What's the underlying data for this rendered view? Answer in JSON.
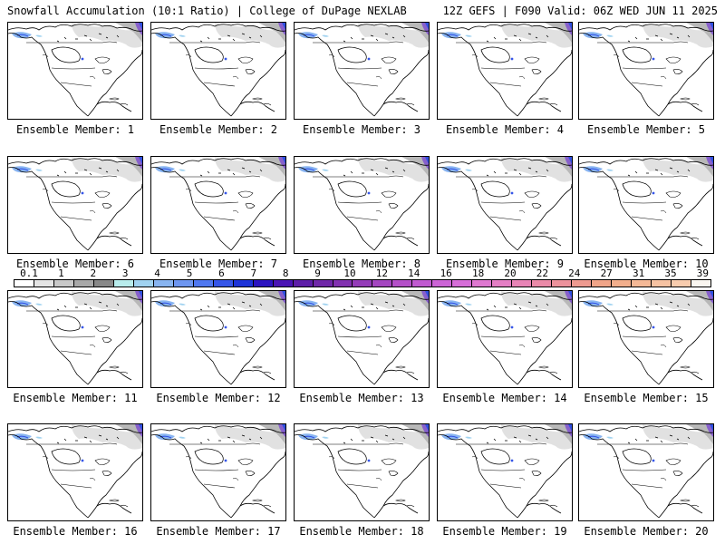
{
  "header": {
    "left": "Snowfall Accumulation (10:1 Ratio) | College of DuPage NEXLAB",
    "right": "12Z GEFS | F090 Valid: 06Z WED JUN 11 2025"
  },
  "panels": [
    {
      "caption": "Ensemble Member: 1"
    },
    {
      "caption": "Ensemble Member: 2"
    },
    {
      "caption": "Ensemble Member: 3"
    },
    {
      "caption": "Ensemble Member: 4"
    },
    {
      "caption": "Ensemble Member: 5"
    },
    {
      "caption": "Ensemble Member: 6"
    },
    {
      "caption": "Ensemble Member: 7"
    },
    {
      "caption": "Ensemble Member: 8"
    },
    {
      "caption": "Ensemble Member: 9"
    },
    {
      "caption": "Ensemble Member: 10"
    },
    {
      "caption": "Ensemble Member: 11"
    },
    {
      "caption": "Ensemble Member: 12"
    },
    {
      "caption": "Ensemble Member: 13"
    },
    {
      "caption": "Ensemble Member: 14"
    },
    {
      "caption": "Ensemble Member: 15"
    },
    {
      "caption": "Ensemble Member: 16"
    },
    {
      "caption": "Ensemble Member: 17"
    },
    {
      "caption": "Ensemble Member: 18"
    },
    {
      "caption": "Ensemble Member: 19"
    },
    {
      "caption": "Ensemble Member: 20"
    }
  ],
  "colorbar": {
    "labels": [
      "0.1",
      "1",
      "2",
      "3",
      "4",
      "5",
      "6",
      "7",
      "8",
      "9",
      "10",
      "12",
      "14",
      "16",
      "18",
      "20",
      "22",
      "24",
      "27",
      "31",
      "35",
      "39"
    ],
    "colors": [
      "#ffffff",
      "#e4e4e4",
      "#c8c8c8",
      "#a8a8a8",
      "#888888",
      "#b8ecec",
      "#a0d2f0",
      "#88b4f0",
      "#6e96f0",
      "#5078f0",
      "#3656e8",
      "#1e34d8",
      "#2c14c0",
      "#4a14b4",
      "#5e1ea8",
      "#7028a8",
      "#8232b0",
      "#943cb8",
      "#a446c0",
      "#b450c8",
      "#c05ad0",
      "#cc64d6",
      "#d66ed8",
      "#de78d0",
      "#e47ec4",
      "#e884b6",
      "#ea8aa8",
      "#ec929c",
      "#ee9a90",
      "#f0a488",
      "#f2ae8c",
      "#f4b896",
      "#f6c2a2",
      "#f8ccae",
      "#faf6f0"
    ]
  }
}
